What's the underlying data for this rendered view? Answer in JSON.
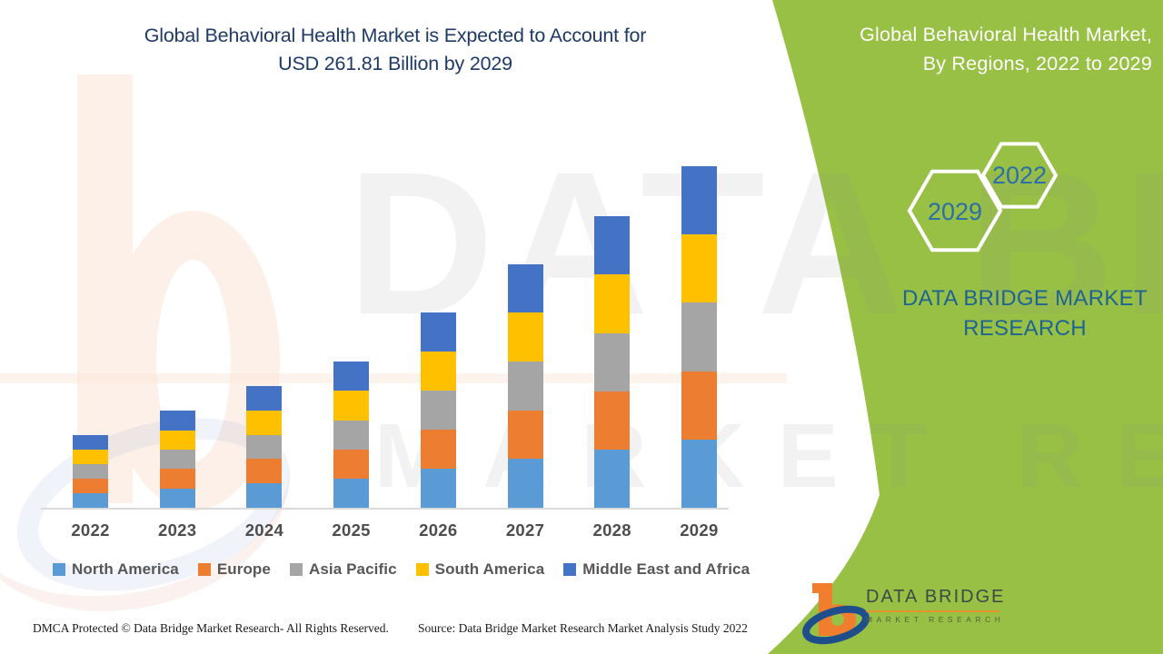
{
  "main_title": {
    "line1": "Global Behavioral Health Market is Expected to Account for",
    "line2": "USD 261.81 Billion by 2029",
    "color": "#1e3a66"
  },
  "right_panel": {
    "background_color": "#98c044",
    "title_line1": "Global Behavioral Health Market,",
    "title_line2": "By Regions, 2022 to 2029",
    "hexagons": [
      {
        "label": "2022"
      },
      {
        "label": "2029"
      }
    ],
    "brand_caption": "DATA BRIDGE MARKET RESEARCH"
  },
  "chart_data": {
    "type": "bar",
    "stacked": true,
    "title": "Global Behavioral Health Market, By Regions, 2022 to 2029",
    "unit": "USD Billion",
    "values_estimated_from_bar_heights": true,
    "categories": [
      "2022",
      "2023",
      "2024",
      "2025",
      "2026",
      "2027",
      "2028",
      "2029"
    ],
    "series": [
      {
        "name": "North America",
        "color": "#5b9bd5",
        "values": [
          11.1,
          14.9,
          18.7,
          22.4,
          30.0,
          37.4,
          44.7,
          52.4
        ]
      },
      {
        "name": "Europe",
        "color": "#ed7d31",
        "values": [
          11.1,
          14.9,
          18.7,
          22.4,
          30.0,
          37.4,
          44.7,
          52.4
        ]
      },
      {
        "name": "Asia Pacific",
        "color": "#a5a5a5",
        "values": [
          11.1,
          14.9,
          18.7,
          22.4,
          30.0,
          37.4,
          44.7,
          52.4
        ]
      },
      {
        "name": "South America",
        "color": "#ffc000",
        "values": [
          11.1,
          14.9,
          18.7,
          22.4,
          30.0,
          37.4,
          44.7,
          52.4
        ]
      },
      {
        "name": "Middle East and Africa",
        "color": "#4472c4",
        "values": [
          11.1,
          14.9,
          18.7,
          22.4,
          30.0,
          37.4,
          44.7,
          52.4
        ]
      }
    ],
    "totals": [
      55.5,
      74.5,
      93.5,
      112.0,
      150.0,
      187.0,
      223.5,
      261.81
    ],
    "highlight": "USD 261.81 Billion by 2029",
    "ylim": [
      0,
      270
    ],
    "gridlines": false,
    "legend_position": "bottom"
  },
  "watermark": {
    "line1": "DATA BRIDGE",
    "line2": "MARKET RESEARCH"
  },
  "footer": {
    "dmca": "DMCA Protected © Data Bridge Market Research- All Rights Reserved.",
    "source": "Source: Data Bridge Market Research Market Analysis Study 2022",
    "logo_name": "DATA BRIDGE",
    "logo_sub": "MARKET RESEARCH"
  }
}
